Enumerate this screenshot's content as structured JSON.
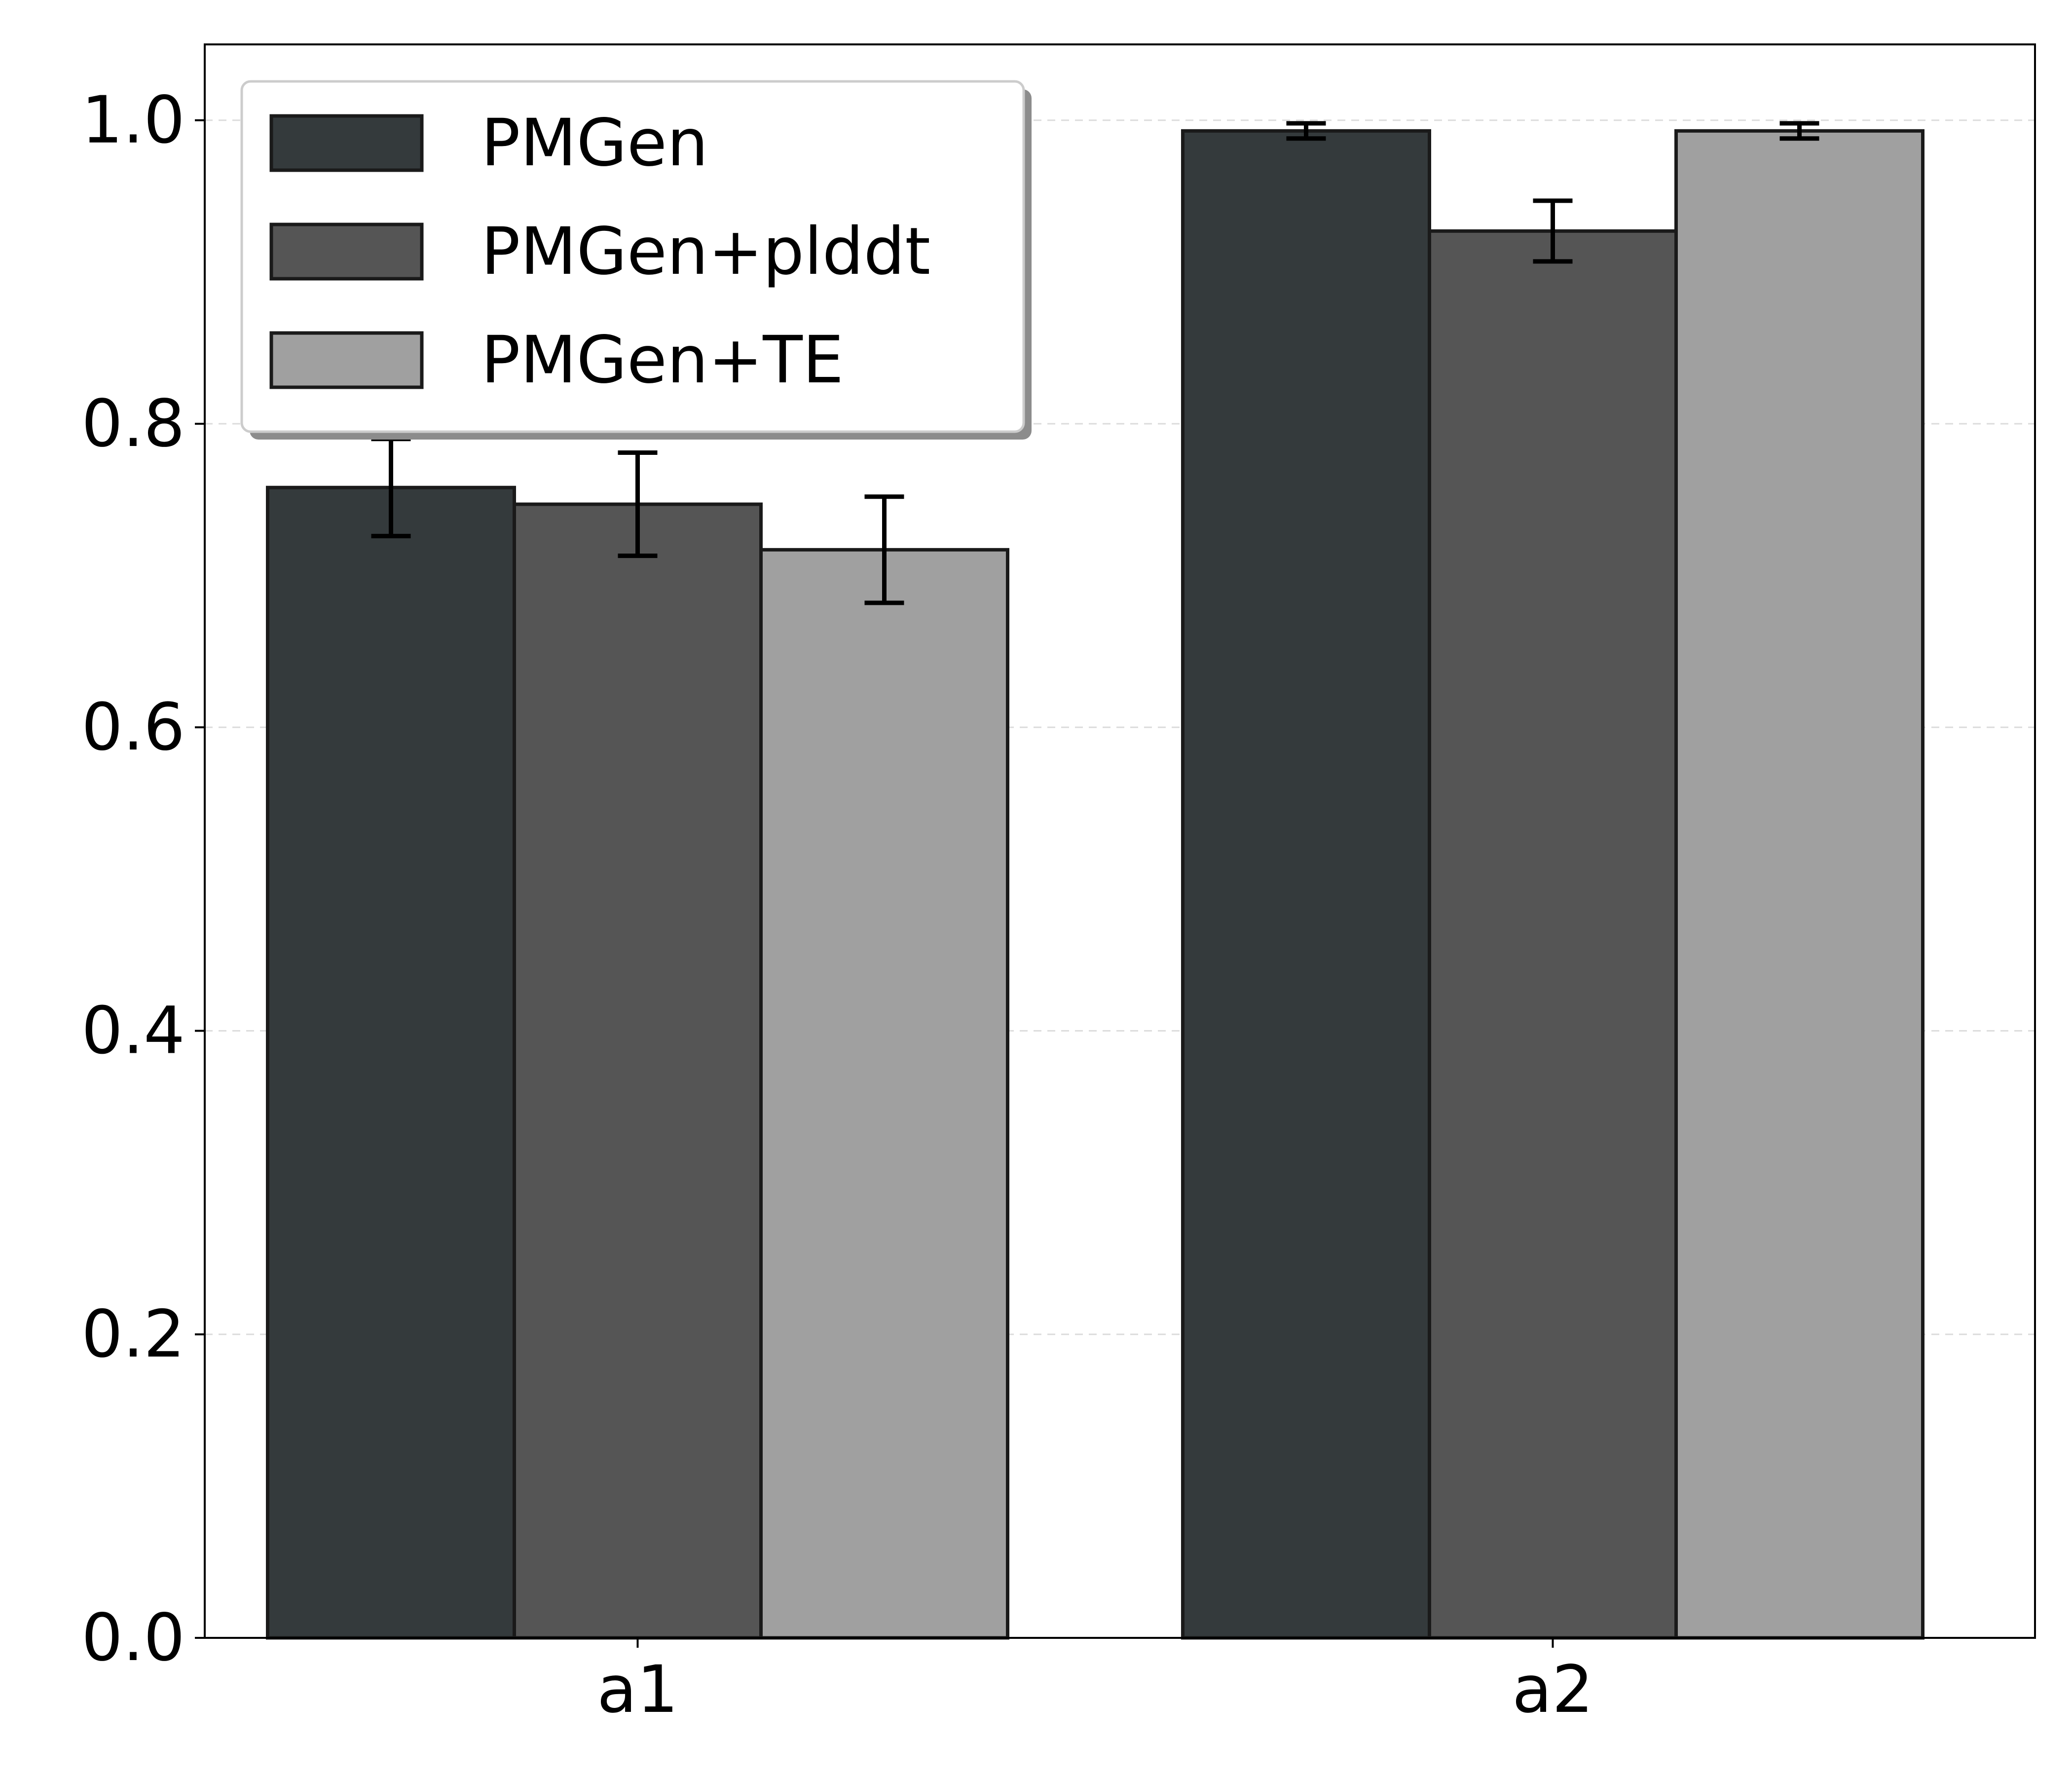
{
  "chart_data": {
    "type": "bar",
    "title": "",
    "xlabel": "",
    "ylabel": "",
    "categories": [
      "a1",
      "a2"
    ],
    "ylim": [
      0,
      1.05
    ],
    "yticks": [
      0.0,
      0.2,
      0.4,
      0.6,
      0.8,
      1.0
    ],
    "ytick_labels": [
      "0.0",
      "0.2",
      "0.4",
      "0.6",
      "0.8",
      "1.0"
    ],
    "grid": "horizontal dashed",
    "legend_position": "top-left",
    "error_bars": true,
    "series": [
      {
        "name": "PMGen",
        "color": "#343a3c",
        "values": [
          0.758,
          0.993
        ],
        "errors": [
          0.032,
          0.005
        ]
      },
      {
        "name": "PMGen+plddt",
        "color": "#555555",
        "values": [
          0.747,
          0.927
        ],
        "errors": [
          0.034,
          0.02
        ]
      },
      {
        "name": "PMGen+TE",
        "color": "#a0a0a0",
        "values": [
          0.717,
          0.993
        ],
        "errors": [
          0.035,
          0.005
        ]
      }
    ]
  }
}
